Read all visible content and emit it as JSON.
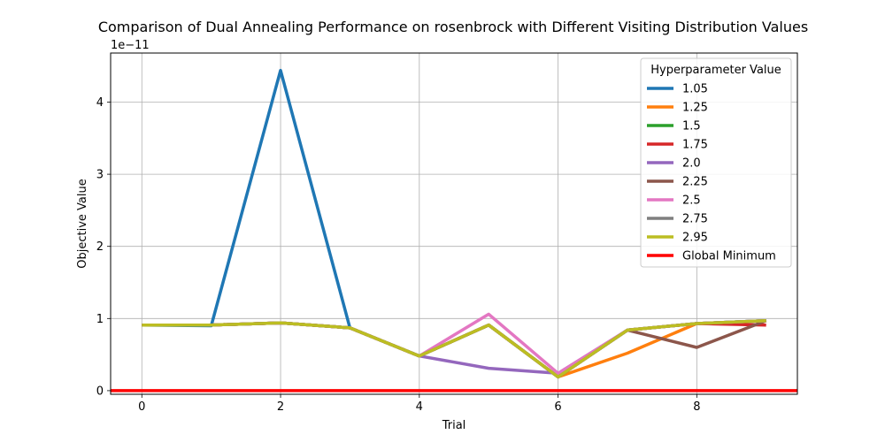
{
  "chart_data": {
    "type": "line",
    "title": "Comparison of Dual Annealing Performance on rosenbrock with Different Visiting Distribution Values",
    "xlabel": "Trial",
    "ylabel": "Objective Value",
    "y_offset_label": "1e−11",
    "xlim": [
      -0.45,
      9.45
    ],
    "ylim": [
      -0.05,
      4.68
    ],
    "x_ticks": [
      0,
      2,
      4,
      6,
      8
    ],
    "y_ticks": [
      0,
      1,
      2,
      3,
      4
    ],
    "grid": true,
    "legend_title": "Hyperparameter Value",
    "legend_position": "top-right",
    "x": [
      0,
      1,
      2,
      3,
      4,
      5,
      6,
      7,
      8,
      9
    ],
    "series": [
      {
        "name": "1.05",
        "color": "#1f77b4",
        "values": [
          0.91,
          0.9,
          4.44,
          0.87,
          0.48,
          0.91,
          0.19,
          0.84,
          0.93,
          0.97
        ]
      },
      {
        "name": "1.25",
        "color": "#ff7f0e",
        "values": [
          0.91,
          0.91,
          0.94,
          0.87,
          0.48,
          0.91,
          0.19,
          0.52,
          0.93,
          0.97
        ]
      },
      {
        "name": "1.5",
        "color": "#2ca02c",
        "values": [
          0.91,
          0.91,
          0.94,
          0.87,
          0.48,
          0.91,
          0.19,
          0.84,
          0.93,
          0.97
        ]
      },
      {
        "name": "1.75",
        "color": "#d62728",
        "values": [
          0.91,
          0.91,
          0.94,
          0.87,
          0.48,
          0.91,
          0.19,
          0.84,
          0.93,
          0.91
        ]
      },
      {
        "name": "2.0",
        "color": "#9467bd",
        "values": [
          0.91,
          0.91,
          0.94,
          0.87,
          0.48,
          0.31,
          0.24,
          0.84,
          0.93,
          0.97
        ]
      },
      {
        "name": "2.25",
        "color": "#8c564b",
        "values": [
          0.91,
          0.91,
          0.94,
          0.87,
          0.48,
          0.91,
          0.19,
          0.84,
          0.6,
          0.97
        ]
      },
      {
        "name": "2.5",
        "color": "#e377c2",
        "values": [
          0.91,
          0.91,
          0.94,
          0.87,
          0.48,
          1.06,
          0.24,
          0.84,
          0.93,
          0.97
        ]
      },
      {
        "name": "2.75",
        "color": "#7f7f7f",
        "values": [
          0.91,
          0.91,
          0.94,
          0.87,
          0.48,
          0.91,
          0.19,
          0.84,
          0.93,
          0.97
        ]
      },
      {
        "name": "2.95",
        "color": "#bcbd22",
        "values": [
          0.91,
          0.91,
          0.94,
          0.87,
          0.48,
          0.91,
          0.19,
          0.84,
          0.93,
          0.97
        ]
      }
    ],
    "reference_line": {
      "name": "Global Minimum",
      "color": "#ff0000",
      "value": 0
    }
  }
}
